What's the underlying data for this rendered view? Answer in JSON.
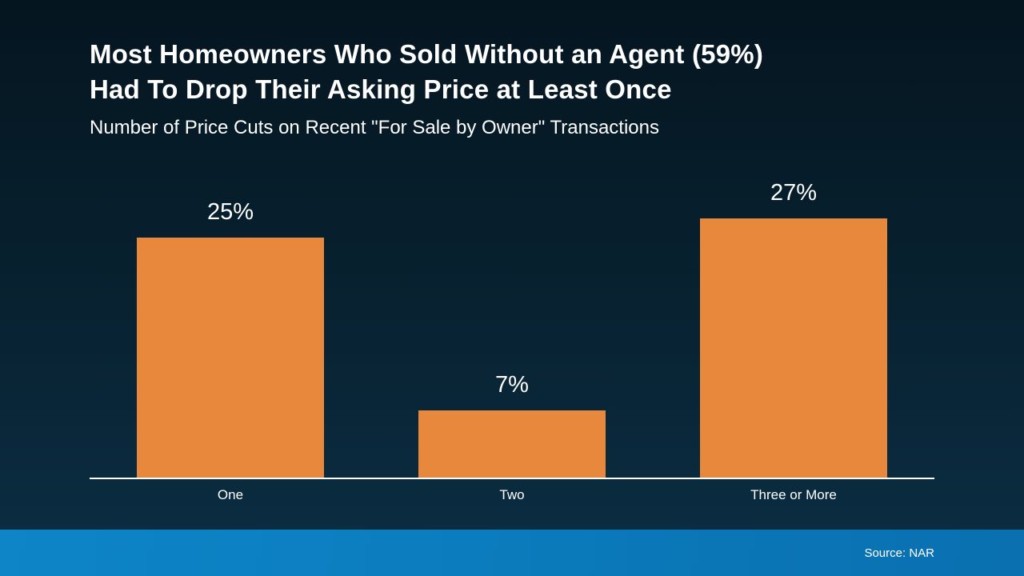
{
  "header": {
    "title_line1": "Most Homeowners Who Sold Without an Agent (59%)",
    "title_line2": "Had To Drop Their Asking Price at Least Once",
    "subtitle": "Number of Price Cuts on Recent \"For Sale by Owner\" Transactions"
  },
  "footer": {
    "source": "Source: NAR"
  },
  "colors": {
    "bar": "#E8883C",
    "background_top": "#051520",
    "background_bottom": "#0d3148",
    "footer_blue": "#0d85c6",
    "text": "#ffffff"
  },
  "chart_data": {
    "type": "bar",
    "title": "Most Homeowners Who Sold Without an Agent (59%) Had To Drop Their Asking Price at Least Once",
    "subtitle": "Number of Price Cuts on Recent \"For Sale by Owner\" Transactions",
    "categories": [
      "One",
      "Two",
      "Three or More"
    ],
    "values": [
      25,
      7,
      27
    ],
    "value_labels": [
      "25%",
      "7%",
      "27%"
    ],
    "xlabel": "",
    "ylabel": "",
    "ylim": [
      0,
      27
    ],
    "grid": false,
    "legend": "none",
    "bar_color": "#E8883C"
  }
}
